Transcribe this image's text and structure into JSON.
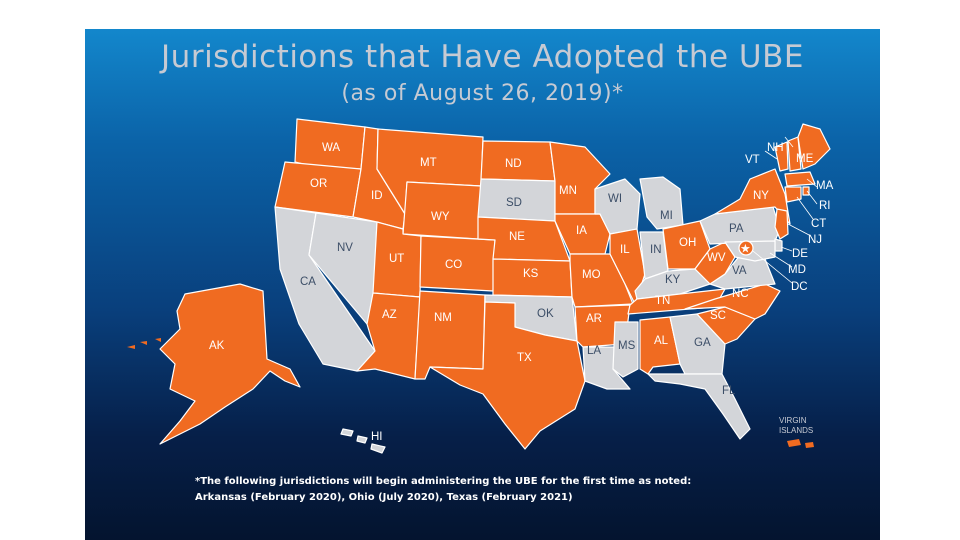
{
  "title": "Jurisdictions that Have Adopted the UBE",
  "subtitle": "(as of August 26, 2019)*",
  "colors": {
    "adopted": "#f06b21",
    "not_adopted": "#d3d5d9",
    "background_top": "#1387cc",
    "background_bottom": "#04142f"
  },
  "states": [
    {
      "abbr": "WA",
      "adopted": true
    },
    {
      "abbr": "OR",
      "adopted": true
    },
    {
      "abbr": "CA",
      "adopted": false
    },
    {
      "abbr": "NV",
      "adopted": false
    },
    {
      "abbr": "ID",
      "adopted": true
    },
    {
      "abbr": "MT",
      "adopted": true
    },
    {
      "abbr": "WY",
      "adopted": true
    },
    {
      "abbr": "UT",
      "adopted": true
    },
    {
      "abbr": "CO",
      "adopted": true
    },
    {
      "abbr": "AZ",
      "adopted": true
    },
    {
      "abbr": "NM",
      "adopted": true
    },
    {
      "abbr": "ND",
      "adopted": true
    },
    {
      "abbr": "SD",
      "adopted": false
    },
    {
      "abbr": "NE",
      "adopted": true
    },
    {
      "abbr": "KS",
      "adopted": true
    },
    {
      "abbr": "OK",
      "adopted": false
    },
    {
      "abbr": "TX",
      "adopted": true
    },
    {
      "abbr": "MN",
      "adopted": true
    },
    {
      "abbr": "IA",
      "adopted": true
    },
    {
      "abbr": "MO",
      "adopted": true
    },
    {
      "abbr": "AR",
      "adopted": true
    },
    {
      "abbr": "LA",
      "adopted": false
    },
    {
      "abbr": "WI",
      "adopted": false
    },
    {
      "abbr": "IL",
      "adopted": true
    },
    {
      "abbr": "MI",
      "adopted": false
    },
    {
      "abbr": "IN",
      "adopted": false
    },
    {
      "abbr": "OH",
      "adopted": true
    },
    {
      "abbr": "KY",
      "adopted": false
    },
    {
      "abbr": "TN",
      "adopted": true
    },
    {
      "abbr": "MS",
      "adopted": false
    },
    {
      "abbr": "AL",
      "adopted": true
    },
    {
      "abbr": "GA",
      "adopted": false
    },
    {
      "abbr": "FL",
      "adopted": false
    },
    {
      "abbr": "SC",
      "adopted": true
    },
    {
      "abbr": "NC",
      "adopted": true
    },
    {
      "abbr": "VA",
      "adopted": false
    },
    {
      "abbr": "WV",
      "adopted": true
    },
    {
      "abbr": "PA",
      "adopted": false
    },
    {
      "abbr": "NY",
      "adopted": true
    },
    {
      "abbr": "VT",
      "adopted": true
    },
    {
      "abbr": "NH",
      "adopted": true
    },
    {
      "abbr": "ME",
      "adopted": true
    },
    {
      "abbr": "MA",
      "adopted": true
    },
    {
      "abbr": "RI",
      "adopted": true
    },
    {
      "abbr": "CT",
      "adopted": true
    },
    {
      "abbr": "NJ",
      "adopted": true
    },
    {
      "abbr": "DE",
      "adopted": false
    },
    {
      "abbr": "MD",
      "adopted": false
    },
    {
      "abbr": "DC",
      "adopted": true
    },
    {
      "abbr": "AK",
      "adopted": true
    },
    {
      "abbr": "HI",
      "adopted": false
    }
  ],
  "virgin_islands_label": "VIRGIN\nISLANDS",
  "virgin_islands_line1": "VIRGIN",
  "virgin_islands_line2": "ISLANDS",
  "footnote": {
    "line1": "*The following jurisdictions will begin administering the UBE for the first time as noted:",
    "line2": "Arkansas (February 2020), Ohio (July 2020), Texas (February 2021)"
  }
}
